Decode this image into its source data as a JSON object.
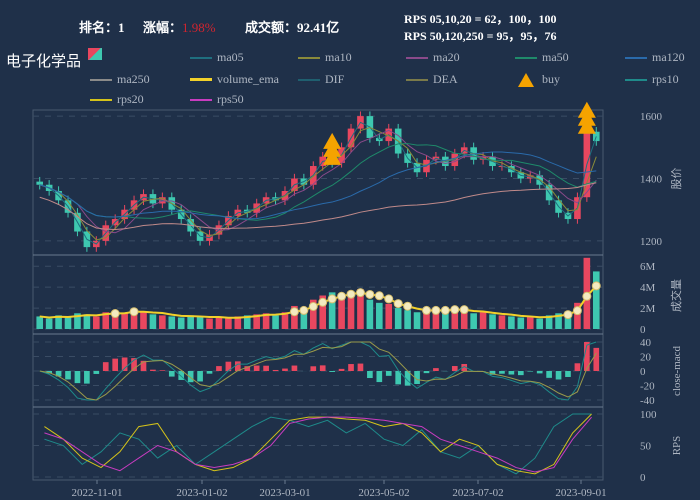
{
  "header": {
    "rank_label": "排名：",
    "rank": "1",
    "change_label": "涨幅：",
    "change": "1.98%",
    "amount_label": "成交额：",
    "amount": "92.41亿",
    "rps_line1": "RPS 05,10,20 = 62，100，100",
    "rps_line2": "RPS 50,120,250 = 95，95，76"
  },
  "title": "电子化学品",
  "legend": [
    {
      "name": "ma05",
      "color": "#1f6f7f"
    },
    {
      "name": "ma10",
      "color": "#8a8a3a"
    },
    {
      "name": "ma20",
      "color": "#8a4a8a"
    },
    {
      "name": "ma50",
      "color": "#1f8a6a"
    },
    {
      "name": "ma120",
      "color": "#2a6aaa"
    },
    {
      "name": "ma250",
      "color": "#8a8a8a"
    },
    {
      "name": "volume_ema",
      "color": "#f2d12a"
    },
    {
      "name": "DIF",
      "color": "#1f5f6f"
    },
    {
      "name": "DEA",
      "color": "#7a7a4a"
    },
    {
      "name": "buy",
      "color": "#f5a300"
    },
    {
      "name": "rps10",
      "color": "#1f8a8a"
    },
    {
      "name": "rps20",
      "color": "#d4c21a"
    },
    {
      "name": "rps50",
      "color": "#c83cc0"
    }
  ],
  "colors": {
    "up": "#e8475f",
    "down": "#3ec8b0"
  },
  "chart_data": {
    "type": "candlestick",
    "x_ticks": [
      "2022-11-01",
      "2023-01-02",
      "2023-03-01",
      "2023-05-02",
      "2023-07-02",
      "2023-09-01"
    ],
    "price": {
      "ylabel": "股价",
      "ylim": [
        1140,
        1620
      ],
      "ticks": [
        "1200",
        "1400",
        "1600"
      ],
      "close": [
        1380,
        1360,
        1330,
        1290,
        1230,
        1180,
        1200,
        1250,
        1270,
        1300,
        1330,
        1350,
        1320,
        1340,
        1300,
        1270,
        1230,
        1200,
        1220,
        1250,
        1280,
        1300,
        1290,
        1320,
        1340,
        1330,
        1360,
        1400,
        1380,
        1440,
        1470,
        1450,
        1500,
        1560,
        1600,
        1530,
        1520,
        1560,
        1480,
        1450,
        1420,
        1460,
        1470,
        1440,
        1480,
        1500,
        1460,
        1470,
        1440,
        1440,
        1420,
        1400,
        1410,
        1380,
        1330,
        1290,
        1270,
        1340,
        1550,
        1520
      ],
      "buy_indices": [
        31,
        58
      ]
    },
    "volume": {
      "ylabel": "成交量",
      "ylim": [
        0,
        7
      ],
      "ticks": [
        "0",
        "2M",
        "4M",
        "6M"
      ],
      "values": [
        1.2,
        1.0,
        1.3,
        1.1,
        1.5,
        1.4,
        1.2,
        1.6,
        1.7,
        1.5,
        1.8,
        1.6,
        1.4,
        1.3,
        1.2,
        1.1,
        1.3,
        1.2,
        1.0,
        1.1,
        1.0,
        1.2,
        1.3,
        1.4,
        1.5,
        1.3,
        1.6,
        2.2,
        2.0,
        2.8,
        3.2,
        3.5,
        3.0,
        3.6,
        3.8,
        2.8,
        2.5,
        2.4,
        2.0,
        1.8,
        1.6,
        1.7,
        2.0,
        1.8,
        1.9,
        1.7,
        1.5,
        1.6,
        1.4,
        1.3,
        1.2,
        1.1,
        1.2,
        1.0,
        1.3,
        1.5,
        1.7,
        2.5,
        6.8,
        5.5
      ]
    },
    "macd": {
      "ylabel": "close-macd",
      "ylim": [
        -40,
        40
      ],
      "ticks": [
        "40",
        "20",
        "0",
        "-20",
        "-40"
      ]
    },
    "rps": {
      "ylabel": "RPS",
      "ylim": [
        0,
        100
      ],
      "ticks": [
        "0",
        "50",
        "100"
      ],
      "rps10": [
        60,
        50,
        20,
        40,
        70,
        60,
        30,
        50,
        20,
        40,
        60,
        80,
        95,
        90,
        80,
        90,
        70,
        85,
        60,
        50,
        75,
        40,
        30,
        50,
        20,
        5,
        30,
        80,
        100,
        100
      ],
      "rps20": [
        80,
        60,
        30,
        15,
        40,
        80,
        85,
        40,
        20,
        10,
        15,
        30,
        60,
        90,
        95,
        95,
        92,
        90,
        80,
        85,
        70,
        40,
        60,
        50,
        20,
        10,
        5,
        20,
        70,
        100
      ],
      "rps50": [
        70,
        60,
        40,
        20,
        10,
        30,
        50,
        40,
        20,
        15,
        20,
        30,
        50,
        85,
        92,
        95,
        95,
        93,
        90,
        85,
        80,
        60,
        50,
        40,
        30,
        15,
        8,
        15,
        60,
        95
      ]
    }
  }
}
